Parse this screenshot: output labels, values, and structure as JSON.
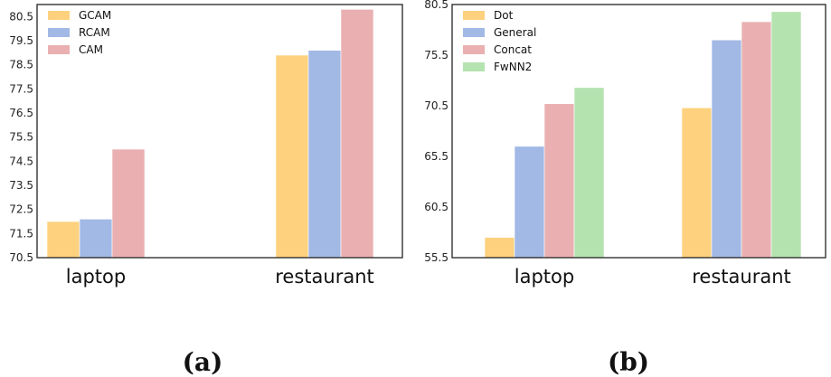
{
  "chart_data": [
    {
      "type": "bar",
      "panel_label": "(a)",
      "categories": [
        "laptop",
        "restaurant"
      ],
      "series": [
        {
          "name": "GCAM",
          "values": [
            72.0,
            78.9
          ],
          "color": "#fdd17e"
        },
        {
          "name": "RCAM",
          "values": [
            72.1,
            79.1
          ],
          "color": "#a2b9e6"
        },
        {
          "name": "CAM",
          "values": [
            75.0,
            80.8
          ],
          "color": "#eab0b1"
        }
      ],
      "yticks": [
        "70.5",
        "71.5",
        "72.5",
        "73.5",
        "74.5",
        "75.5",
        "76.5",
        "77.5",
        "78.5",
        "79.5",
        "80.5"
      ],
      "ylim": [
        70.5,
        81.0
      ],
      "legend_position": "top-left",
      "grid": false
    },
    {
      "type": "bar",
      "panel_label": "(b)",
      "categories": [
        "laptop",
        "restaurant"
      ],
      "series": [
        {
          "name": "Dot",
          "values": [
            57.5,
            70.3
          ],
          "color": "#fdd17e"
        },
        {
          "name": "General",
          "values": [
            66.5,
            77.0
          ],
          "color": "#a2b9e6"
        },
        {
          "name": "Concat",
          "values": [
            70.7,
            78.8
          ],
          "color": "#eab0b1"
        },
        {
          "name": "FwNN2",
          "values": [
            72.3,
            79.8
          ],
          "color": "#b5e3b0"
        }
      ],
      "yticks": [
        "55.5",
        "60.5",
        "65.5",
        "70.5",
        "75.5",
        "80.5"
      ],
      "ylim": [
        55.5,
        80.5
      ],
      "legend_position": "top-left",
      "grid": false
    }
  ]
}
